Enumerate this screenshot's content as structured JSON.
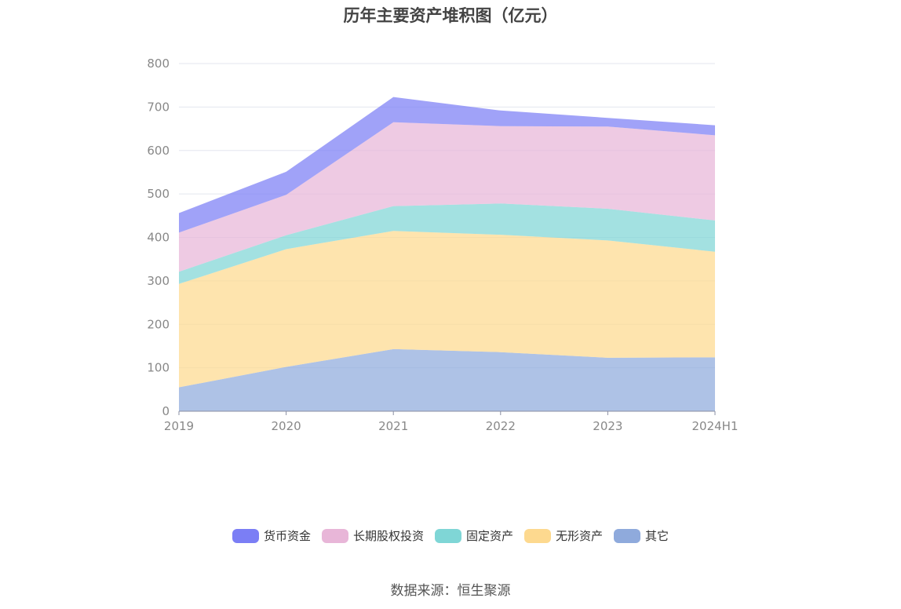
{
  "chart_data": {
    "type": "area",
    "stacked": true,
    "title": "历年主要资产堆积图（亿元）",
    "categories": [
      "2019",
      "2020",
      "2021",
      "2022",
      "2023",
      "2024H1"
    ],
    "ylim": [
      0,
      800
    ],
    "yticks": [
      0,
      100,
      200,
      300,
      400,
      500,
      600,
      700,
      800
    ],
    "grid": true,
    "legend_position": "bottom",
    "series": [
      {
        "name": "其它",
        "color": "#8faadc",
        "values": [
          55,
          102,
          143,
          136,
          123,
          124
        ]
      },
      {
        "name": "无形资产",
        "color": "#fdd98f",
        "values": [
          238,
          271,
          272,
          270,
          270,
          243
        ]
      },
      {
        "name": "固定资产",
        "color": "#7fd6d6",
        "values": [
          28,
          32,
          57,
          72,
          73,
          72
        ]
      },
      {
        "name": "长期股权投资",
        "color": "#e8b6d8",
        "values": [
          90,
          93,
          193,
          178,
          189,
          196
        ]
      },
      {
        "name": "货币资金",
        "color": "#7b7ef5",
        "values": [
          45,
          53,
          58,
          36,
          20,
          23
        ]
      }
    ]
  },
  "legend": [
    {
      "label": "货币资金",
      "color": "#7b7ef5"
    },
    {
      "label": "长期股权投资",
      "color": "#e8b6d8"
    },
    {
      "label": "固定资产",
      "color": "#7fd6d6"
    },
    {
      "label": "无形资产",
      "color": "#fdd98f"
    },
    {
      "label": "其它",
      "color": "#8faadc"
    }
  ],
  "source": "数据来源：恒生聚源"
}
